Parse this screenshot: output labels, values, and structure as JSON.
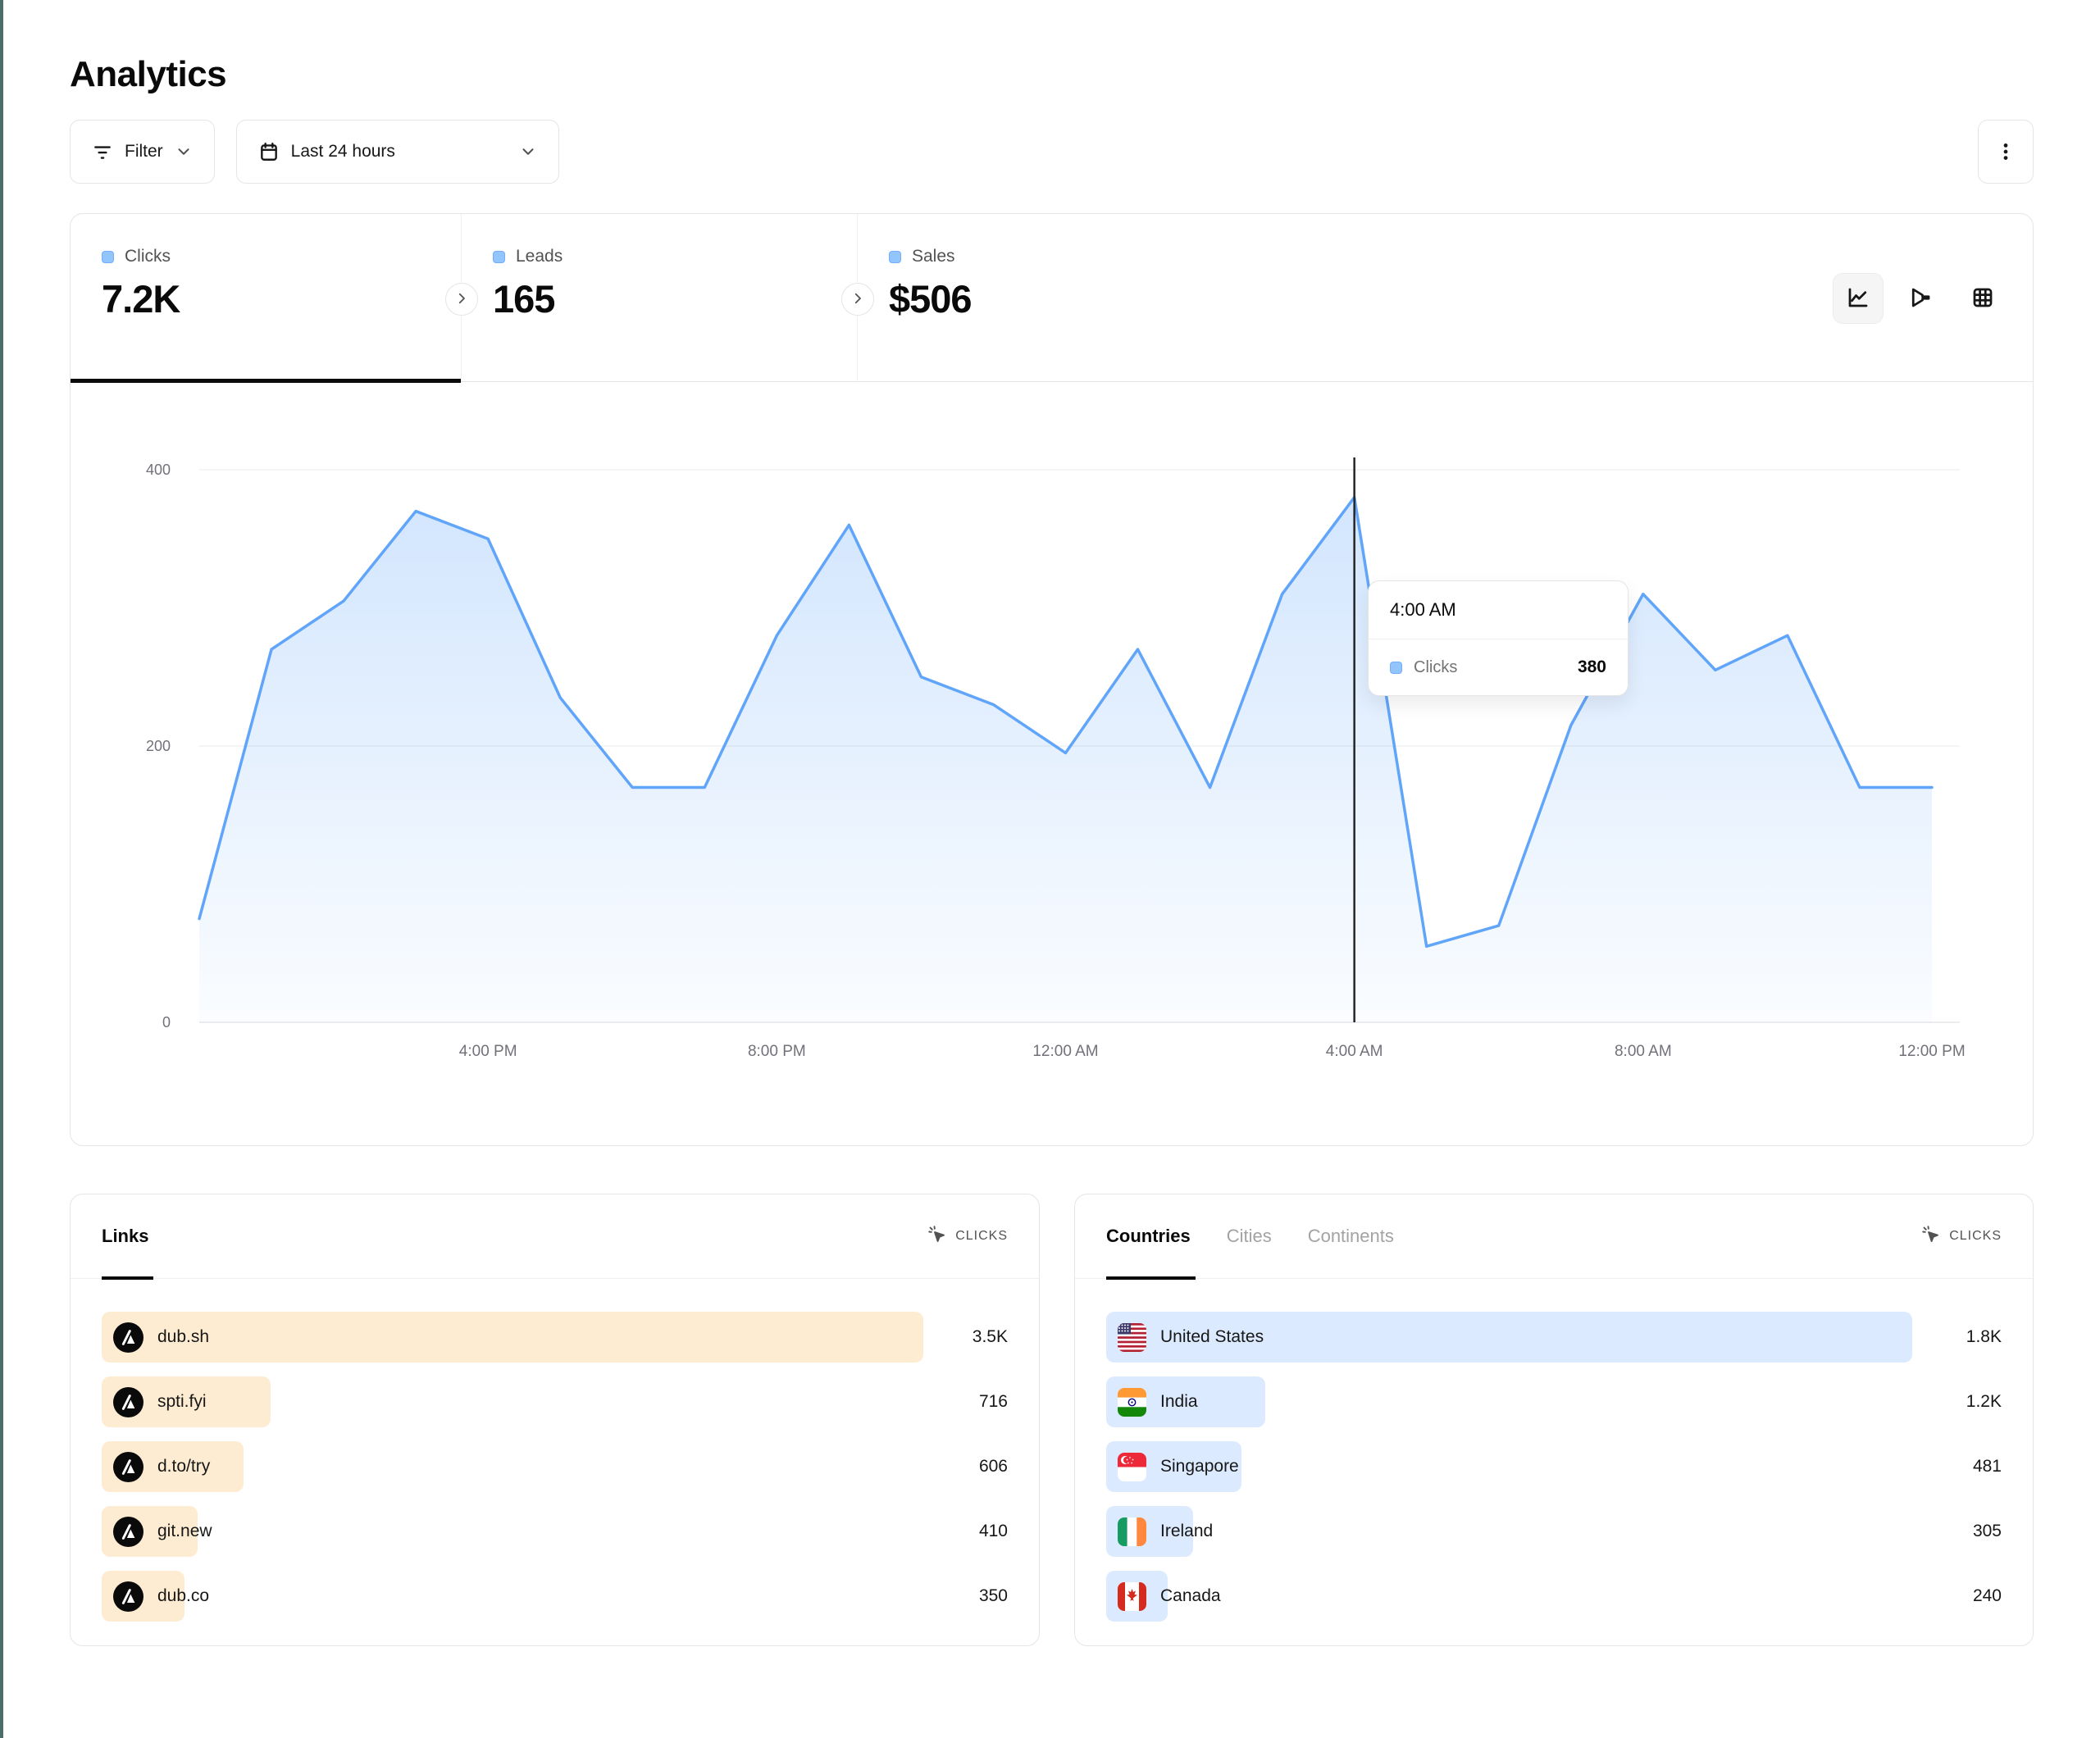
{
  "page": {
    "title": "Analytics"
  },
  "toolbar": {
    "filter_label": "Filter",
    "filter_icon": "filter-lines-icon",
    "date_range_label": "Last 24 hours",
    "date_range_icon": "calendar-icon",
    "chevron_icon": "chevron-down-icon",
    "menu_icon": "kebab-menu-icon"
  },
  "stats": {
    "tabs": [
      {
        "label": "Clicks",
        "value": "7.2K",
        "active": true
      },
      {
        "label": "Leads",
        "value": "165",
        "active": false
      },
      {
        "label": "Sales",
        "value": "$506",
        "active": false
      }
    ],
    "view_toggles": [
      "line-chart-icon",
      "funnel-icon",
      "grid-table-icon"
    ],
    "active_view": "line-chart-icon"
  },
  "chart_data": {
    "type": "area",
    "series_name": "Clicks",
    "x": [
      "12 PM",
      "1 PM",
      "2 PM",
      "3 PM",
      "4 PM",
      "5 PM",
      "6 PM",
      "7 PM",
      "8 PM",
      "9 PM",
      "10 PM",
      "11 PM",
      "12 AM",
      "1 AM",
      "2 AM",
      "3 AM",
      "4 AM",
      "5 AM",
      "6 AM",
      "7 AM",
      "8 AM",
      "9 AM",
      "10 AM",
      "11 AM",
      "12 PM"
    ],
    "values": [
      75,
      270,
      305,
      370,
      350,
      235,
      170,
      170,
      280,
      360,
      250,
      230,
      195,
      270,
      170,
      310,
      380,
      55,
      70,
      215,
      310,
      255,
      280,
      170,
      170
    ],
    "ylim": [
      0,
      400
    ],
    "yticks": [
      0,
      200,
      400
    ],
    "tick_labels": [
      "4:00 PM",
      "8:00 PM",
      "12:00 AM",
      "4:00 AM",
      "8:00 AM",
      "12:00 PM"
    ],
    "tick_indices": [
      4,
      8,
      12,
      16,
      20,
      24
    ],
    "grid": "horizontal",
    "legend": "none",
    "crosshair_index": 16
  },
  "tooltip": {
    "time": "4:00 AM",
    "series_label": "Clicks",
    "value": "380"
  },
  "links_panel": {
    "tab_label": "Links",
    "metric_label": "CLICKS",
    "metric_icon": "cursor-click-icon",
    "row_icon": "dub-logo-icon",
    "rows": [
      {
        "label": "dub.sh",
        "value": "3.5K",
        "bar_pct": 90.7
      },
      {
        "label": "spti.fyi",
        "value": "716",
        "bar_pct": 18.6
      },
      {
        "label": "d.to/try",
        "value": "606",
        "bar_pct": 15.7
      },
      {
        "label": "git.new",
        "value": "410",
        "bar_pct": 10.6
      },
      {
        "label": "dub.co",
        "value": "350",
        "bar_pct": 9.1
      }
    ]
  },
  "countries_panel": {
    "tabs": [
      "Countries",
      "Cities",
      "Continents"
    ],
    "active_tab": "Countries",
    "metric_label": "CLICKS",
    "metric_icon": "cursor-click-icon",
    "rows": [
      {
        "label": "United States",
        "value": "1.8K",
        "bar_pct": 90.0,
        "flag": "us",
        "flag_icon": "flag-us-icon"
      },
      {
        "label": "India",
        "value": "1.2K",
        "bar_pct": 17.8,
        "flag": "in",
        "flag_icon": "flag-india-icon"
      },
      {
        "label": "Singapore",
        "value": "481",
        "bar_pct": 15.1,
        "flag": "sg",
        "flag_icon": "flag-singapore-icon"
      },
      {
        "label": "Ireland",
        "value": "305",
        "bar_pct": 9.7,
        "flag": "ie",
        "flag_icon": "flag-ireland-icon"
      },
      {
        "label": "Canada",
        "value": "240",
        "bar_pct": 6.9,
        "flag": "ca",
        "flag_icon": "flag-canada-icon"
      }
    ]
  },
  "colors": {
    "accent_line": "#60a5fa",
    "legend_square": "#93c5fd",
    "links_bar": "#feecd2",
    "countries_bar": "#dbeafe",
    "grid_line": "#f0f0f0",
    "axis_line": "#e5e5e5",
    "axis_text": "#71717a",
    "crosshair": "#262626",
    "edge_accent": "#4d6d69"
  }
}
